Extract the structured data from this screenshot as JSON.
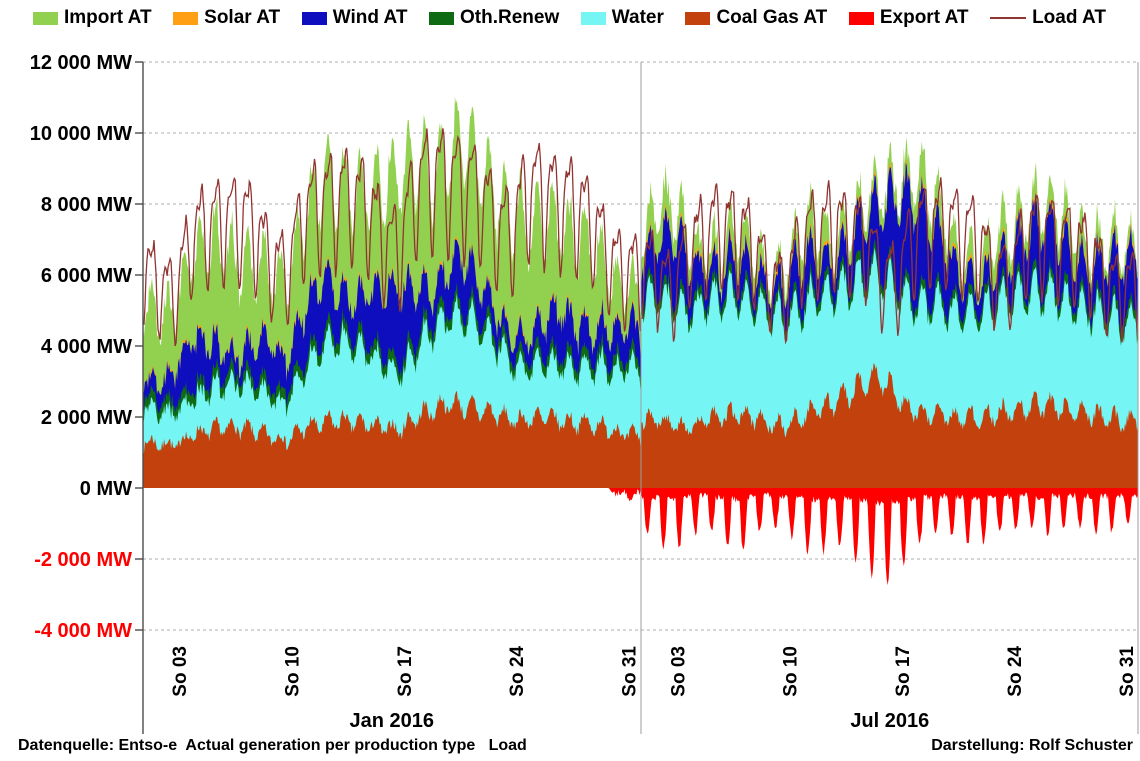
{
  "legend": [
    {
      "label": "Import AT",
      "color": "#92D050",
      "type": "box"
    },
    {
      "label": "Solar AT",
      "color": "#FFA014",
      "type": "box"
    },
    {
      "label": "Wind AT",
      "color": "#0E0EBE",
      "type": "box"
    },
    {
      "label": "Oth.Renew",
      "color": "#0E6B14",
      "type": "box"
    },
    {
      "label": "Water",
      "color": "#76F5F5",
      "type": "box"
    },
    {
      "label": "Coal Gas AT",
      "color": "#C2410C",
      "type": "box"
    },
    {
      "label": "Export AT",
      "color": "#FF0000",
      "type": "box"
    },
    {
      "label": "Load AT",
      "color": "#913532",
      "type": "line"
    }
  ],
  "colors": {
    "import": "#92D050",
    "solar": "#FFA014",
    "wind": "#0E0EBE",
    "oth_renew": "#0E6B14",
    "water": "#76F5F5",
    "coal_gas": "#C2410C",
    "export": "#FF0000",
    "load": "#913532",
    "grid": "#ADADAD",
    "axis": "#4D4D4D",
    "panel_border": "#9E9E9E",
    "negative_label": "#FF0000",
    "label": "#000000"
  },
  "footer": {
    "left": "Datenquelle: Entso-e  Actual generation per production type   Load",
    "right": "Darstellung: Rolf Schuster"
  },
  "chart_data": {
    "type": "area",
    "subtype": "stacked-area-with-load-line",
    "unit": "MW",
    "ylim": [
      -4000,
      12000
    ],
    "grid_step": 2000,
    "grid_on": true,
    "legend_position": "top",
    "stack_order_bottom_to_top": [
      "coal_gas",
      "water",
      "oth_renew",
      "wind",
      "solar",
      "import"
    ],
    "series_names": {
      "import": "Import AT",
      "solar": "Solar AT",
      "wind": "Wind AT",
      "oth_renew": "Oth.Renew",
      "water": "Water",
      "coal_gas": "Coal Gas AT",
      "export": "Export AT",
      "load": "Load AT"
    },
    "y_ticks": [
      {
        "label": "12 000 MW",
        "value": 12000,
        "negative": false
      },
      {
        "label": "10 000 MW",
        "value": 10000,
        "negative": false
      },
      {
        "label": "8 000 MW",
        "value": 8000,
        "negative": false
      },
      {
        "label": "6 000 MW",
        "value": 6000,
        "negative": false
      },
      {
        "label": "4 000 MW",
        "value": 4000,
        "negative": false
      },
      {
        "label": "2 000 MW",
        "value": 2000,
        "negative": false
      },
      {
        "label": "0 MW",
        "value": 0,
        "negative": false
      },
      {
        "label": "-2 000 MW",
        "value": -2000,
        "negative": true
      },
      {
        "label": "-4 000 MW",
        "value": -4000,
        "negative": true
      }
    ],
    "samples_per_day": 16,
    "noise_seed": 7,
    "diurnal_amplitude": {
      "coal_gas": 0.12,
      "water": 0.1,
      "oth_renew": 0.04,
      "wind": 0.07,
      "solar": 0.9,
      "import": 0.2,
      "export": 1.3,
      "load": 0.24
    },
    "noise": {
      "coal_gas": 190,
      "water": 160,
      "oth_renew": 25,
      "wind": 230,
      "solar": 10,
      "import": 270,
      "export": 240,
      "load": 170
    },
    "panels": [
      {
        "month_label": "Jan 2016",
        "days": 31,
        "x_ticks": [
          {
            "label": "So 03",
            "day": 3
          },
          {
            "label": "So 10",
            "day": 10
          },
          {
            "label": "So 17",
            "day": 17
          },
          {
            "label": "So 24",
            "day": 24
          },
          {
            "label": "So 31",
            "day": 31
          }
        ],
        "daily_mean": {
          "coal_gas": [
            1300,
            1250,
            1200,
            1500,
            1600,
            1700,
            1700,
            1600,
            1450,
            1350,
            1700,
            1800,
            1900,
            1850,
            1800,
            1700,
            1650,
            2000,
            2200,
            2400,
            2300,
            2200,
            2100,
            1900,
            1950,
            2000,
            1900,
            1850,
            1800,
            1700,
            1500
          ],
          "water": [
            1000,
            950,
            900,
            1000,
            1100,
            1150,
            1200,
            1150,
            1050,
            1100,
            1600,
            2000,
            2300,
            2200,
            2000,
            1700,
            1600,
            1900,
            2200,
            2400,
            2500,
            2300,
            2000,
            1600,
            1450,
            1500,
            1550,
            1500,
            1650,
            1750,
            1850
          ],
          "oth_renew": 300,
          "wind": [
            400,
            500,
            900,
            1400,
            1100,
            600,
            450,
            900,
            1300,
            800,
            1400,
            1700,
            1200,
            900,
            1400,
            1800,
            2100,
            1400,
            800,
            1100,
            1400,
            950,
            600,
            450,
            550,
            900,
            1250,
            900,
            650,
            800,
            900
          ],
          "solar": 40,
          "import": [
            2100,
            2000,
            1700,
            2400,
            2700,
            2900,
            2600,
            2200,
            1900,
            2300,
            2500,
            2700,
            2900,
            3100,
            2700,
            2900,
            3300,
            3500,
            3300,
            3100,
            3400,
            3300,
            3200,
            3400,
            3200,
            2800,
            2300,
            2500,
            2300,
            1700,
            1100
          ],
          "export": [
            0,
            0,
            0,
            0,
            0,
            0,
            0,
            0,
            0,
            0,
            0,
            0,
            0,
            0,
            0,
            0,
            0,
            0,
            0,
            0,
            0,
            0,
            0,
            0,
            0,
            0,
            0,
            0,
            0,
            0,
            -150
          ],
          "load": [
            6300,
            5700,
            5500,
            7000,
            7400,
            7600,
            7600,
            7300,
            6300,
            6100,
            7700,
            8000,
            8200,
            8200,
            7900,
            7000,
            6800,
            8500,
            8700,
            8700,
            8500,
            8300,
            7400,
            7200,
            8500,
            8300,
            8100,
            7900,
            7500,
            6500,
            6100
          ]
        }
      },
      {
        "month_label": "Jul 2016",
        "days": 31,
        "x_ticks": [
          {
            "label": "So 03",
            "day": 3
          },
          {
            "label": "So 10",
            "day": 10
          },
          {
            "label": "So 17",
            "day": 17
          },
          {
            "label": "So 24",
            "day": 24
          },
          {
            "label": "So 31",
            "day": 31
          }
        ],
        "daily_mean": {
          "coal_gas": [
            1900,
            1950,
            1750,
            1700,
            1900,
            2000,
            2100,
            2000,
            1850,
            1750,
            2000,
            2200,
            2400,
            2700,
            3000,
            3100,
            2500,
            2200,
            2100,
            2000,
            1950,
            2000,
            2100,
            2200,
            2300,
            2350,
            2250,
            2150,
            2100,
            2000,
            1900
          ],
          "water": [
            3400,
            3450,
            3350,
            3250,
            3300,
            3400,
            3300,
            3200,
            3100,
            3000,
            3100,
            3200,
            3100,
            3000,
            2900,
            2850,
            2950,
            3050,
            3100,
            3000,
            2950,
            3000,
            3100,
            3200,
            3250,
            3200,
            3100,
            3000,
            2900,
            2850,
            2750
          ],
          "oth_renew": 250,
          "wind": [
            800,
            1400,
            1800,
            1150,
            700,
            550,
            900,
            650,
            450,
            800,
            1200,
            900,
            650,
            1000,
            1500,
            1800,
            2400,
            2700,
            2100,
            1450,
            800,
            550,
            750,
            1000,
            1400,
            1750,
            1500,
            1100,
            900,
            1300,
            1550
          ],
          "solar": 60,
          "import": [
            600,
            850,
            700,
            500,
            400,
            600,
            750,
            500,
            350,
            450,
            700,
            850,
            600,
            400,
            500,
            350,
            450,
            600,
            750,
            700,
            500,
            600,
            850,
            700,
            500,
            400,
            600,
            750,
            600,
            400,
            300
          ],
          "export": [
            -700,
            -1000,
            -1200,
            -850,
            -700,
            -900,
            -1300,
            -850,
            -650,
            -750,
            -1100,
            -1300,
            -950,
            -1200,
            -1500,
            -1900,
            -1600,
            -1100,
            -850,
            -750,
            -950,
            -1100,
            -850,
            -750,
            -650,
            -850,
            -750,
            -650,
            -750,
            -850,
            -650
          ],
          "load": [
            6500,
            6100,
            5500,
            6800,
            7200,
            7400,
            7200,
            6800,
            5800,
            5600,
            7000,
            7200,
            7400,
            7200,
            7000,
            6000,
            5800,
            7200,
            7400,
            7400,
            7200,
            7000,
            6100,
            5900,
            7000,
            7200,
            7000,
            6800,
            6600,
            5800,
            5600
          ]
        }
      }
    ]
  }
}
